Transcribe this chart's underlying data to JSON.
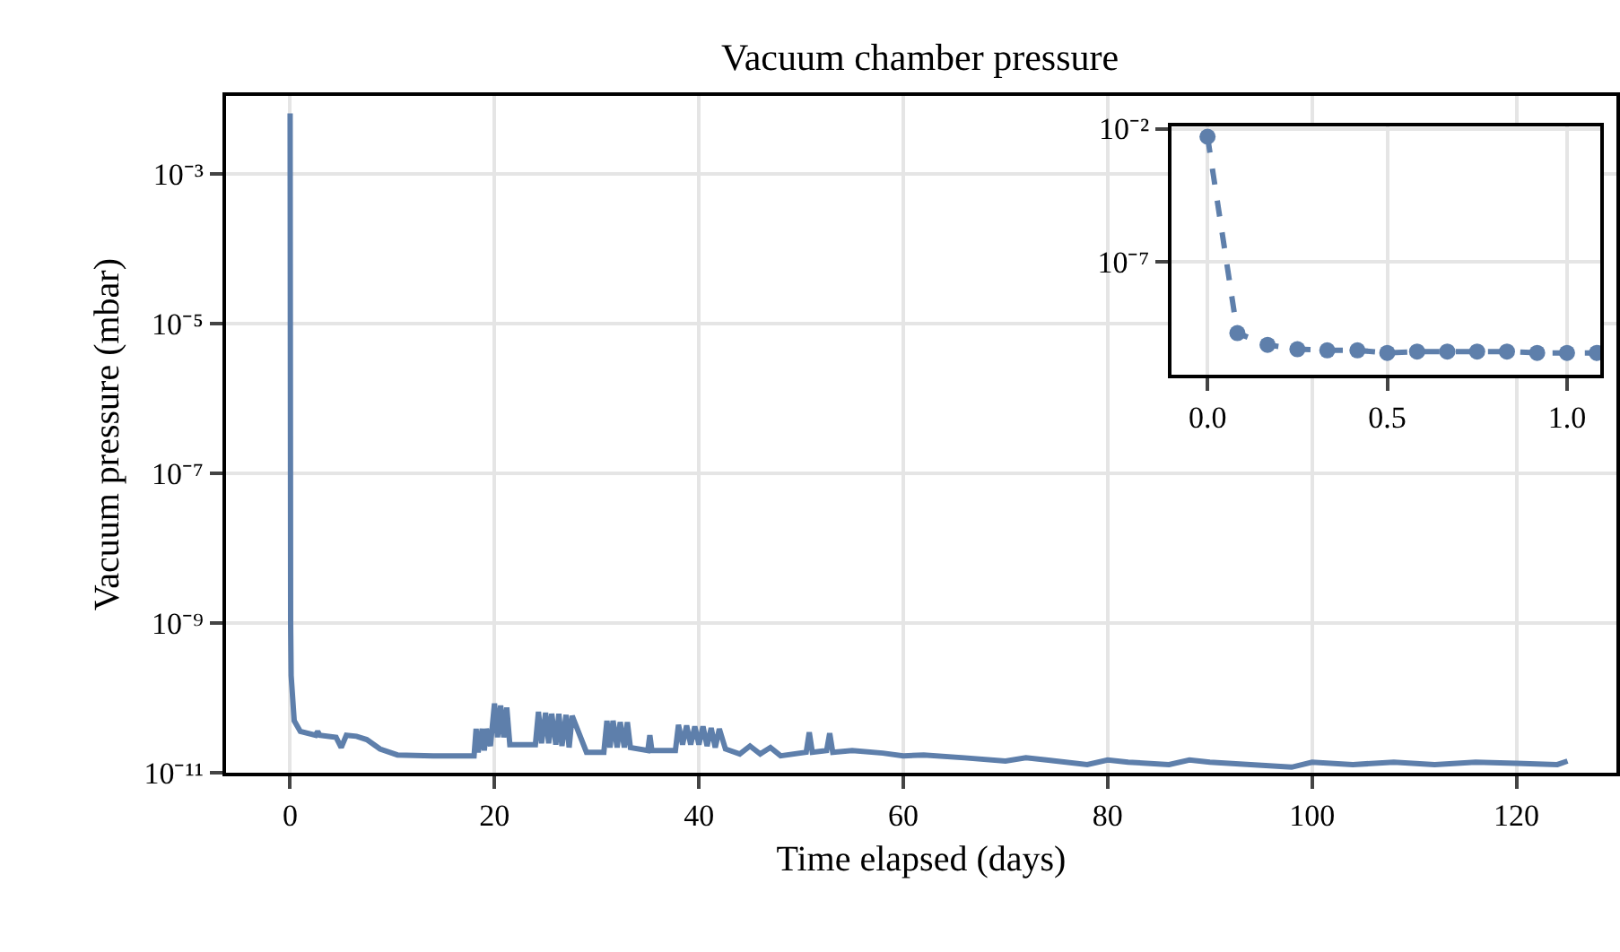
{
  "chart_data": [
    {
      "type": "line",
      "title": "Vacuum chamber pressure",
      "xlabel": "Time elapsed (days)",
      "ylabel": "Vacuum pressure (mbar)",
      "log": "y",
      "grid": true,
      "line_style": "solid",
      "marker": "none",
      "xlim": [
        -6.3,
        129.8
      ],
      "xticks": [
        0,
        20,
        40,
        60,
        80,
        100,
        120
      ],
      "ylim": [
        1e-11,
        0.011
      ],
      "yticks": [
        {
          "value": 0.001,
          "label": "10⁻³"
        },
        {
          "value": 1e-05,
          "label": "10⁻⁵"
        },
        {
          "value": 1e-07,
          "label": "10⁻⁷"
        },
        {
          "value": 1e-09,
          "label": "10⁻⁹"
        },
        {
          "value": 1e-11,
          "label": "10⁻¹¹"
        }
      ],
      "series": [
        {
          "color": "#5e7fab",
          "x": [
            0,
            0.05,
            0.1,
            0.4,
            1,
            2.5,
            2.7,
            2.9,
            4.5,
            5.0,
            5.5,
            6.5,
            7.5,
            8.8,
            10.5,
            14,
            18,
            18.2,
            18.4,
            18.8,
            19.0,
            19.2,
            19.6,
            20.0,
            20.3,
            20.6,
            20.9,
            21.2,
            21.5,
            24,
            24.3,
            24.6,
            25.0,
            25.3,
            25.6,
            26.0,
            26.3,
            26.6,
            27.0,
            27.3,
            27.6,
            29,
            30.7,
            31.0,
            31.3,
            31.6,
            32.0,
            32.3,
            32.7,
            33.0,
            33.3,
            35.0,
            35.2,
            35.4,
            37.7,
            38.0,
            38.4,
            38.8,
            39.2,
            39.6,
            40.0,
            40.4,
            40.8,
            41.2,
            41.6,
            42.0,
            42.6,
            44,
            45,
            46,
            47,
            48,
            50.5,
            50.8,
            51.1,
            52.5,
            52.8,
            53.1,
            55,
            58,
            60,
            62,
            66,
            70,
            72,
            74,
            78,
            80,
            82,
            86,
            88,
            90,
            94,
            98,
            100,
            104,
            108,
            112,
            116,
            120,
            124,
            125
          ],
          "values": [
            0.0064,
            1e-09,
            2e-10,
            5e-11,
            3.6e-11,
            3.2e-11,
            3.6e-11,
            3.2e-11,
            3e-11,
            2.2e-11,
            3.2e-11,
            3.1e-11,
            2.8e-11,
            2.1e-11,
            1.75e-11,
            1.7e-11,
            1.7e-11,
            3.9e-11,
            1.9e-11,
            3.9e-11,
            2e-11,
            3.9e-11,
            2.3e-11,
            8.5e-11,
            3e-11,
            8e-11,
            3e-11,
            7.5e-11,
            2.4e-11,
            2.4e-11,
            6.6e-11,
            2.5e-11,
            6.4e-11,
            2.5e-11,
            6.2e-11,
            2.4e-11,
            6.2e-11,
            2.3e-11,
            6e-11,
            2.2e-11,
            5.8e-11,
            1.9e-11,
            1.9e-11,
            5e-11,
            2.2e-11,
            5e-11,
            2.2e-11,
            4.8e-11,
            2.2e-11,
            4.8e-11,
            2.2e-11,
            2e-11,
            3.2e-11,
            2e-11,
            2e-11,
            4.4e-11,
            2.4e-11,
            4.3e-11,
            2.4e-11,
            4.2e-11,
            2.4e-11,
            4.2e-11,
            2.3e-11,
            4e-11,
            2.2e-11,
            3.9e-11,
            2.1e-11,
            1.8e-11,
            2.3e-11,
            1.8e-11,
            2.2e-11,
            1.7e-11,
            1.9e-11,
            3.5e-11,
            1.9e-11,
            2e-11,
            3.4e-11,
            1.9e-11,
            2e-11,
            1.85e-11,
            1.7e-11,
            1.75e-11,
            1.6e-11,
            1.45e-11,
            1.6e-11,
            1.5e-11,
            1.3e-11,
            1.5e-11,
            1.4e-11,
            1.3e-11,
            1.5e-11,
            1.4e-11,
            1.3e-11,
            1.2e-11,
            1.4e-11,
            1.3e-11,
            1.4e-11,
            1.3e-11,
            1.4e-11,
            1.35e-11,
            1.3e-11,
            1.45e-11
          ]
        }
      ]
    },
    {
      "type": "line",
      "log": "y",
      "grid": true,
      "line_style": "dashed",
      "marker": "circle",
      "xlim": [
        -0.1,
        1.093
      ],
      "xticks": [
        {
          "value": 0,
          "label": "0.0"
        },
        0.5,
        {
          "value": 1,
          "label": "1.0"
        }
      ],
      "ylim": [
        6e-12,
        0.012
      ],
      "yticks": [
        {
          "value": 0.01,
          "label": "10⁻²"
        },
        {
          "value": 1e-07,
          "label": "10⁻⁷"
        }
      ],
      "series": [
        {
          "color": "#5e7fab",
          "x": [
            0,
            0.083,
            0.167,
            0.25,
            0.333,
            0.417,
            0.5,
            0.583,
            0.667,
            0.75,
            0.833,
            0.917,
            1.0,
            1.083
          ],
          "values": [
            0.005,
            2.2e-10,
            8e-11,
            5.5e-11,
            5e-11,
            5e-11,
            4e-11,
            4.5e-11,
            4.5e-11,
            4.5e-11,
            4.5e-11,
            4e-11,
            4e-11,
            4e-11
          ]
        }
      ]
    }
  ]
}
